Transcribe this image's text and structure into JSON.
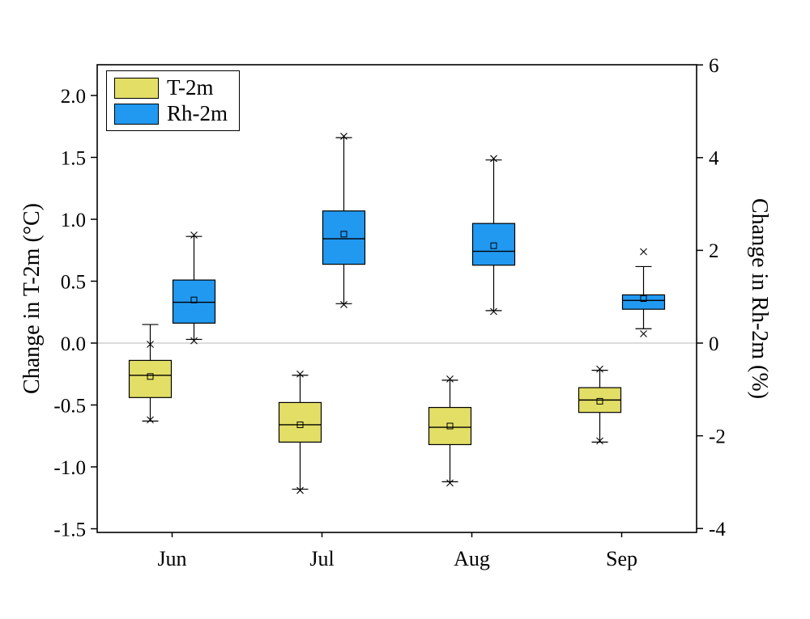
{
  "figure": {
    "background": "#ffffff",
    "frame_color": "#000000",
    "zero_line_color": "#b8b8b8"
  },
  "legend": {
    "items": [
      {
        "label": "T-2m",
        "color": "#e3de66"
      },
      {
        "label": "Rh-2m",
        "color": "#2199f1"
      }
    ]
  },
  "chart_data": {
    "type": "boxplot",
    "title": "",
    "categories": [
      "Jun",
      "Jul",
      "Aug",
      "Sep"
    ],
    "left_axis": {
      "label": "Change in T-2m (°C)",
      "range": [
        -1.55,
        2.25
      ],
      "ticks": [
        {
          "v": 2.0,
          "label": "2.0"
        },
        {
          "v": 1.5,
          "label": "1.5"
        },
        {
          "v": 1.0,
          "label": "1.0"
        },
        {
          "v": 0.5,
          "label": "0.5"
        },
        {
          "v": 0.0,
          "label": "0.0"
        },
        {
          "v": -0.5,
          "label": "-0.5"
        },
        {
          "v": -1.0,
          "label": "-1.0"
        },
        {
          "v": -1.5,
          "label": "-1.5"
        }
      ]
    },
    "right_axis": {
      "label": "Change in Rh-2m (%)",
      "range": [
        -4.1,
        6.0
      ],
      "ticks": [
        {
          "v": 6,
          "label": "6"
        },
        {
          "v": 4,
          "label": "4"
        },
        {
          "v": 2,
          "label": "2"
        },
        {
          "v": 0,
          "label": "0"
        },
        {
          "v": -2,
          "label": "-2"
        },
        {
          "v": -4,
          "label": "-4"
        }
      ]
    },
    "zero_line": true,
    "legend_position": "top-left",
    "series": [
      {
        "name": "T-2m",
        "axis": "left",
        "color": "#e3de66",
        "boxes": [
          {
            "category": "Jun",
            "whisker_low": -0.63,
            "q1": -0.44,
            "median": -0.26,
            "mean": -0.27,
            "q3": -0.14,
            "whisker_high": 0.15,
            "outliers": [
              -0.01,
              -0.62
            ]
          },
          {
            "category": "Jul",
            "whisker_low": -1.18,
            "q1": -0.8,
            "median": -0.66,
            "mean": -0.66,
            "q3": -0.48,
            "whisker_high": -0.26,
            "outliers": [
              -0.25,
              -1.19
            ]
          },
          {
            "category": "Aug",
            "whisker_low": -1.12,
            "q1": -0.82,
            "median": -0.68,
            "mean": -0.67,
            "q3": -0.52,
            "whisker_high": -0.3,
            "outliers": [
              -0.29,
              -1.13
            ]
          },
          {
            "category": "Sep",
            "whisker_low": -0.8,
            "q1": -0.56,
            "median": -0.46,
            "mean": -0.47,
            "q3": -0.36,
            "whisker_high": -0.22,
            "outliers": [
              -0.21,
              -0.79
            ]
          }
        ]
      },
      {
        "name": "Rh-2m",
        "axis": "right",
        "color": "#2199f1",
        "boxes": [
          {
            "category": "Jun",
            "whisker_low": 0.08,
            "q1": 0.43,
            "median": 0.88,
            "mean": 0.93,
            "q3": 1.36,
            "whisker_high": 2.3,
            "outliers": [
              2.33,
              0.05
            ]
          },
          {
            "category": "Jul",
            "whisker_low": 0.85,
            "q1": 1.7,
            "median": 2.25,
            "mean": 2.35,
            "q3": 2.85,
            "whisker_high": 4.43,
            "outliers": [
              4.46,
              0.83
            ]
          },
          {
            "category": "Aug",
            "whisker_low": 0.7,
            "q1": 1.68,
            "median": 1.98,
            "mean": 2.1,
            "q3": 2.58,
            "whisker_high": 3.95,
            "outliers": [
              3.98,
              0.68
            ]
          },
          {
            "category": "Sep",
            "whisker_low": 0.31,
            "q1": 0.73,
            "median": 0.92,
            "mean": 0.96,
            "q3": 1.04,
            "whisker_high": 1.65,
            "outliers": [
              1.97,
              0.2
            ]
          }
        ]
      }
    ]
  }
}
